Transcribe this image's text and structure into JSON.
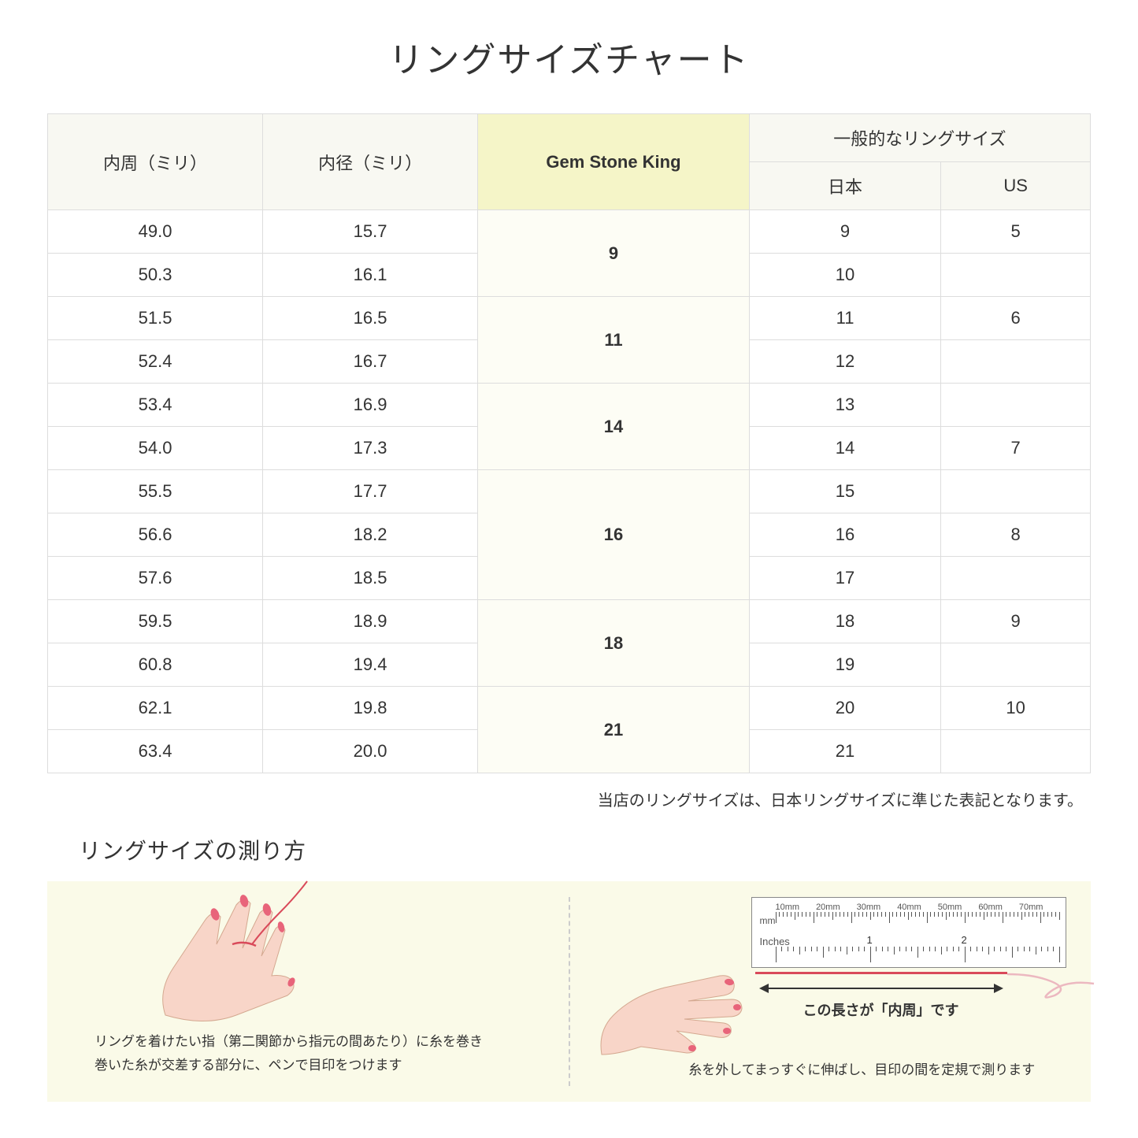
{
  "title": "リングサイズチャート",
  "table": {
    "headers": {
      "circumference": "内周（ミリ）",
      "diameter": "内径（ミリ）",
      "gsk": "Gem Stone King",
      "general": "一般的なリングサイズ",
      "jp": "日本",
      "us": "US"
    },
    "header_bg": "#f8f8f2",
    "gsk_header_bg": "#f5f5c8",
    "gsk_cell_bg": "#fdfdf5",
    "border_color": "#dddddd",
    "groups": [
      {
        "gsk": "9",
        "rows": [
          {
            "circ": "49.0",
            "diam": "15.7",
            "jp": "9",
            "us": "5"
          },
          {
            "circ": "50.3",
            "diam": "16.1",
            "jp": "10",
            "us": ""
          }
        ]
      },
      {
        "gsk": "11",
        "rows": [
          {
            "circ": "51.5",
            "diam": "16.5",
            "jp": "11",
            "us": "6"
          },
          {
            "circ": "52.4",
            "diam": "16.7",
            "jp": "12",
            "us": ""
          }
        ]
      },
      {
        "gsk": "14",
        "rows": [
          {
            "circ": "53.4",
            "diam": "16.9",
            "jp": "13",
            "us": ""
          },
          {
            "circ": "54.0",
            "diam": "17.3",
            "jp": "14",
            "us": "7"
          }
        ]
      },
      {
        "gsk": "16",
        "rows": [
          {
            "circ": "55.5",
            "diam": "17.7",
            "jp": "15",
            "us": ""
          },
          {
            "circ": "56.6",
            "diam": "18.2",
            "jp": "16",
            "us": "8"
          },
          {
            "circ": "57.6",
            "diam": "18.5",
            "jp": "17",
            "us": ""
          }
        ]
      },
      {
        "gsk": "18",
        "rows": [
          {
            "circ": "59.5",
            "diam": "18.9",
            "jp": "18",
            "us": "9"
          },
          {
            "circ": "60.8",
            "diam": "19.4",
            "jp": "19",
            "us": ""
          }
        ]
      },
      {
        "gsk": "21",
        "rows": [
          {
            "circ": "62.1",
            "diam": "19.8",
            "jp": "20",
            "us": "10"
          },
          {
            "circ": "63.4",
            "diam": "20.0",
            "jp": "21",
            "us": ""
          }
        ]
      }
    ]
  },
  "note": "当店のリングサイズは、日本リングサイズに準じた表記となります。",
  "measure": {
    "title": "リングサイズの測り方",
    "bg_color": "#fafae8",
    "left_instruction": "リングを着けたい指（第二関節から指元の間あたり）に糸を巻き\n巻いた糸が交差する部分に、ペンで目印をつけます",
    "right_instruction": "糸を外してまっすぐに伸ばし、目印の間を定規で測ります",
    "length_label": "この長さが「内周」です",
    "ruler": {
      "mm_labels": [
        "10mm",
        "20mm",
        "30mm",
        "40mm",
        "50mm",
        "60mm",
        "70mm"
      ],
      "mm_unit": "mm",
      "inches_label": "Inches",
      "inches_marks": [
        "1",
        "2"
      ]
    },
    "hand_skin": "#f8d5c8",
    "nail_color": "#e8647a",
    "thread_color": "#d94a5a"
  }
}
